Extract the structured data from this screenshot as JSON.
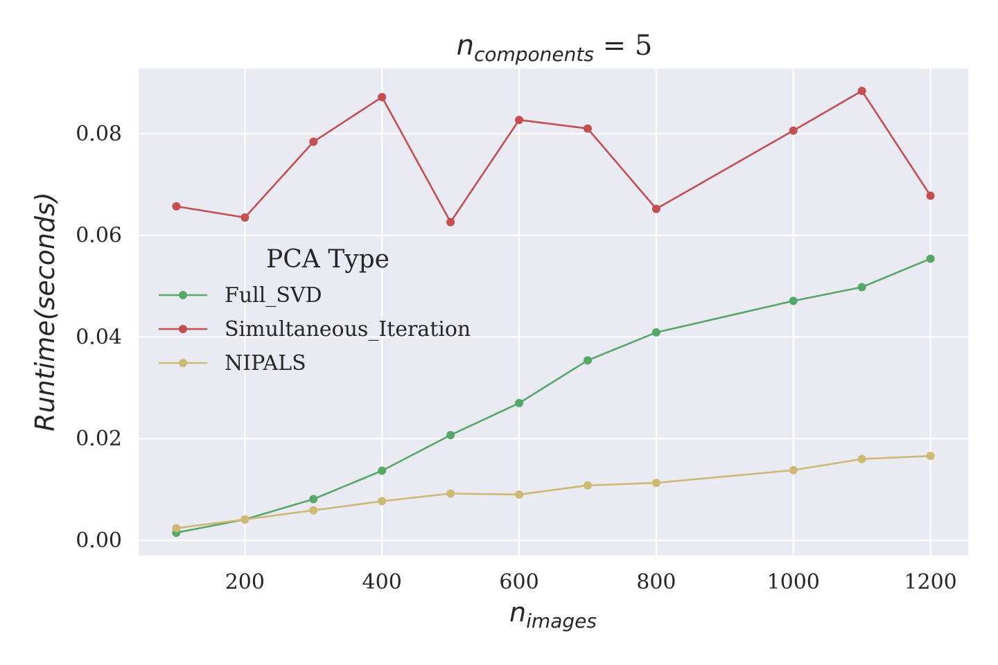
{
  "chart_data": {
    "type": "line",
    "title_base": "n",
    "title_sub": "components",
    "title_rest": " = 5",
    "xlabel_base": "n",
    "xlabel_sub": "images",
    "ylabel": "Runtime(seconds)",
    "x": [
      100,
      200,
      300,
      400,
      500,
      600,
      700,
      800,
      1000,
      1100,
      1200
    ],
    "xlim": [
      45,
      1255
    ],
    "ylim": [
      -0.003,
      0.0928
    ],
    "x_ticks": [
      200,
      400,
      600,
      800,
      1000,
      1200
    ],
    "x_tick_labels": [
      "200",
      "400",
      "600",
      "800",
      "1000",
      "1200"
    ],
    "y_ticks": [
      0.0,
      0.02,
      0.04,
      0.06,
      0.08
    ],
    "y_tick_labels": [
      "0.00",
      "0.02",
      "0.04",
      "0.06",
      "0.08"
    ],
    "grid": true,
    "legend": {
      "title": "PCA Type",
      "placement": "center-left"
    },
    "series": [
      {
        "name": "Full_SVD",
        "color": "#55a868",
        "values": [
          0.0015,
          0.0041,
          0.0081,
          0.0137,
          0.0207,
          0.027,
          0.0354,
          0.0409,
          0.0471,
          0.0498,
          0.0554
        ]
      },
      {
        "name": "Simultaneous_Iteration",
        "color": "#c44e52",
        "values": [
          0.0657,
          0.0635,
          0.0784,
          0.0872,
          0.0626,
          0.0827,
          0.081,
          0.0652,
          0.0806,
          0.0884,
          0.0678
        ]
      },
      {
        "name": "NIPALS",
        "color": "#ccb974",
        "values": [
          0.0024,
          0.0041,
          0.0059,
          0.0077,
          0.0092,
          0.009,
          0.0108,
          0.0113,
          0.0138,
          0.016,
          0.0166
        ]
      }
    ],
    "colors": {
      "plot_background": "#eaeaf2",
      "grid": "#ffffff",
      "text": "#262626"
    }
  }
}
